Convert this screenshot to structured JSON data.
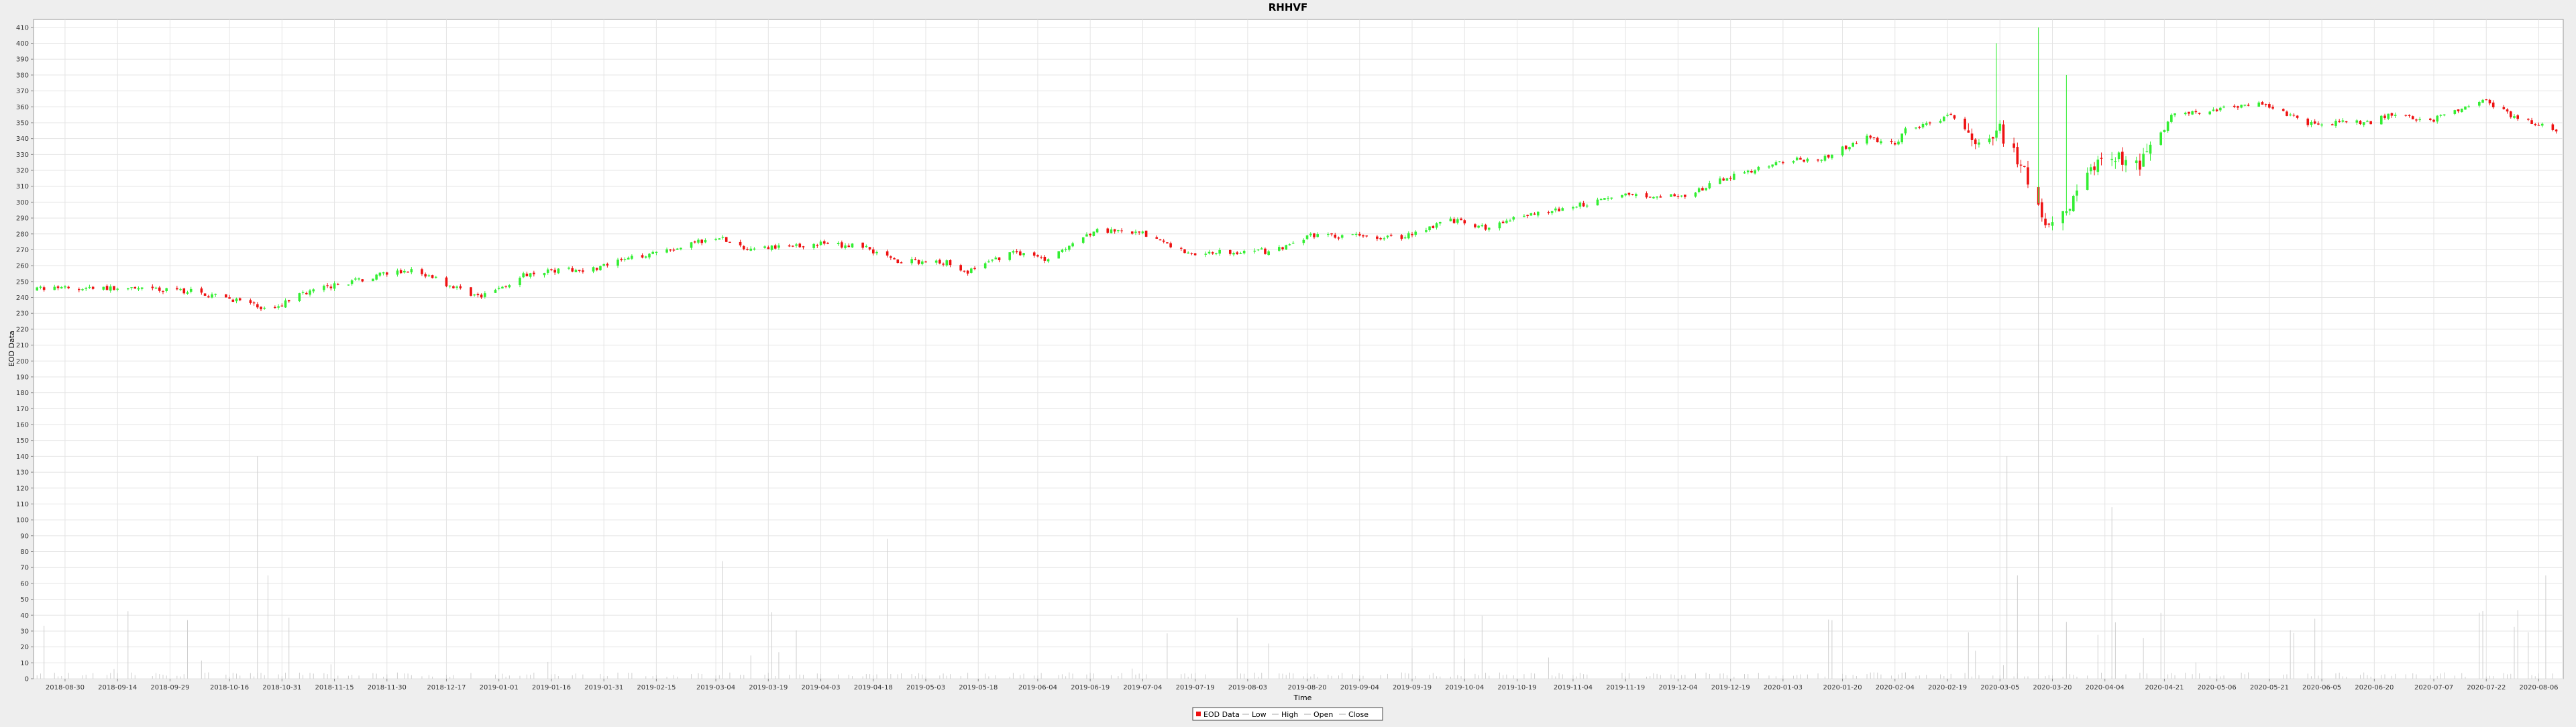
{
  "chart_data": {
    "type": "candlestick",
    "title": "RHHVF",
    "xlabel": "Time",
    "ylabel": "EOD Data",
    "ylim": [
      0,
      415
    ],
    "yticks": [
      0,
      10,
      20,
      30,
      40,
      50,
      60,
      70,
      80,
      90,
      100,
      110,
      120,
      130,
      140,
      150,
      160,
      170,
      180,
      190,
      200,
      210,
      220,
      230,
      240,
      250,
      260,
      270,
      280,
      290,
      300,
      310,
      320,
      330,
      340,
      350,
      360,
      370,
      380,
      390,
      400,
      410
    ],
    "xlim": [
      "2018-08-21",
      "2020-08-13"
    ],
    "xticks": [
      "2018-08-30",
      "2018-09-14",
      "2018-09-29",
      "2018-10-16",
      "2018-10-31",
      "2018-11-15",
      "2018-11-30",
      "2018-12-17",
      "2019-01-01",
      "2019-01-16",
      "2019-01-31",
      "2019-02-15",
      "2019-03-04",
      "2019-03-19",
      "2019-04-03",
      "2019-04-18",
      "2019-05-03",
      "2019-05-18",
      "2019-06-04",
      "2019-06-19",
      "2019-07-04",
      "2019-07-19",
      "2019-08-03",
      "2019-08-20",
      "2019-09-04",
      "2019-09-19",
      "2019-10-04",
      "2019-10-19",
      "2019-11-04",
      "2019-11-19",
      "2019-12-04",
      "2019-12-19",
      "2020-01-03",
      "2020-01-20",
      "2020-02-04",
      "2020-02-19",
      "2020-03-05",
      "2020-03-20",
      "2020-04-04",
      "2020-04-21",
      "2020-05-06",
      "2020-05-21",
      "2020-06-05",
      "2020-06-20",
      "2020-07-07",
      "2020-07-22",
      "2020-08-06"
    ],
    "grid": true,
    "legend_position": "bottom-center",
    "legend": [
      "EOD Data",
      "Low",
      "High",
      "Open",
      "Close"
    ],
    "colors": {
      "up": "#33ee33",
      "down": "#ee1111",
      "volume": "#cfcfcf",
      "grid": "#e4e4e4"
    },
    "price_anchors": [
      [
        "2018-08-22",
        245
      ],
      [
        "2018-09-05",
        246
      ],
      [
        "2018-09-20",
        245
      ],
      [
        "2018-10-05",
        244
      ],
      [
        "2018-10-19",
        238
      ],
      [
        "2018-10-27",
        232
      ],
      [
        "2018-11-06",
        243
      ],
      [
        "2018-11-18",
        249
      ],
      [
        "2018-11-30",
        255
      ],
      [
        "2018-12-08",
        257
      ],
      [
        "2018-12-14",
        251
      ],
      [
        "2018-12-27",
        240
      ],
      [
        "2019-01-10",
        256
      ],
      [
        "2019-01-28",
        258
      ],
      [
        "2019-02-15",
        269
      ],
      [
        "2019-03-04",
        278
      ],
      [
        "2019-03-13",
        270
      ],
      [
        "2019-04-03",
        274
      ],
      [
        "2019-04-15",
        272
      ],
      [
        "2019-04-25",
        263
      ],
      [
        "2019-05-10",
        262
      ],
      [
        "2019-05-15",
        256
      ],
      [
        "2019-05-28",
        269
      ],
      [
        "2019-06-06",
        264
      ],
      [
        "2019-06-20",
        282
      ],
      [
        "2019-07-04",
        280
      ],
      [
        "2019-07-17",
        268
      ],
      [
        "2019-08-10",
        269
      ],
      [
        "2019-08-21",
        279
      ],
      [
        "2019-09-16",
        278
      ],
      [
        "2019-09-30",
        289
      ],
      [
        "2019-10-10",
        283
      ],
      [
        "2019-10-19",
        290
      ],
      [
        "2019-11-02",
        296
      ],
      [
        "2019-11-19",
        305
      ],
      [
        "2019-12-06",
        303
      ],
      [
        "2019-12-18",
        316
      ],
      [
        "2020-01-04",
        326
      ],
      [
        "2020-01-15",
        328
      ],
      [
        "2020-01-27",
        341
      ],
      [
        "2020-02-04",
        336
      ],
      [
        "2020-02-07",
        345
      ],
      [
        "2020-02-20",
        354
      ],
      [
        "2020-02-26",
        340
      ],
      [
        "2020-03-05",
        345
      ],
      [
        "2020-03-12",
        318
      ],
      [
        "2020-03-18",
        290
      ],
      [
        "2020-03-24",
        296
      ],
      [
        "2020-04-03",
        330
      ],
      [
        "2020-04-14",
        322
      ],
      [
        "2020-04-23",
        354
      ],
      [
        "2020-05-04",
        358
      ],
      [
        "2020-05-19",
        362
      ],
      [
        "2020-06-01",
        350
      ],
      [
        "2020-06-19",
        350
      ],
      [
        "2020-06-24",
        355
      ],
      [
        "2020-07-07",
        352
      ],
      [
        "2020-07-21",
        364
      ],
      [
        "2020-07-29",
        355
      ],
      [
        "2020-08-11",
        345
      ]
    ],
    "volume_spikes": [
      [
        "2018-10-24",
        140
      ],
      [
        "2018-10-27",
        65
      ],
      [
        "2019-03-06",
        74
      ],
      [
        "2019-04-22",
        88
      ],
      [
        "2019-10-01",
        270
      ],
      [
        "2020-03-07",
        140
      ],
      [
        "2020-03-10",
        65
      ],
      [
        "2020-03-16",
        410
      ],
      [
        "2020-04-06",
        108
      ],
      [
        "2020-08-08",
        65
      ]
    ],
    "high_spikes": [
      [
        "2020-03-04",
        400
      ],
      [
        "2020-03-16",
        410
      ],
      [
        "2020-03-24",
        380
      ]
    ]
  }
}
